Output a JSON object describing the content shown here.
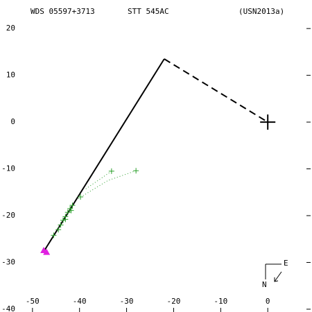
{
  "chart_data": {
    "type": "scatter",
    "titles": [
      "WDS 05597+3713",
      "STT 545AC",
      "(USN2013a)"
    ],
    "xlim": [
      -56.9,
      9.4
    ],
    "ylim": [
      -40.6,
      26.1
    ],
    "xticks": [
      -50,
      -40,
      -30,
      -20,
      -10,
      0
    ],
    "yticks": [
      20,
      10,
      0,
      -10,
      -20,
      -30,
      -40
    ],
    "grid": false,
    "compass": [
      "N",
      "E"
    ],
    "series": [
      {
        "x": [
          -47.5,
          -22.0
        ],
        "y": [
          -27.5,
          13.5
        ],
        "color": "#000000",
        "line": "solid",
        "marker": "none"
      },
      {
        "x": [
          -22.0,
          0
        ],
        "y": [
          13.5,
          0
        ],
        "color": "#000000",
        "line": "dashed",
        "marker": "none"
      },
      {
        "x": [
          -33.2,
          -39.0
        ],
        "y": [
          -10.5,
          -14.5
        ],
        "color": "#2ca02c",
        "line": "dotted",
        "marker": "none"
      },
      {
        "x": [
          -28.0,
          -34.0,
          -40.5
        ],
        "y": [
          -10.4,
          -12.5,
          -16.5
        ],
        "color": "#2ca02c",
        "line": "dotted",
        "marker": "none"
      },
      {
        "x": [
          -33.2,
          -28.0,
          -39.8,
          -41.5,
          -42.0,
          -42.5,
          -43.0,
          -43.5,
          -44.0,
          -44.5,
          -45.5,
          -41.8,
          -43.0
        ],
        "y": [
          -10.5,
          -10.4,
          -16.0,
          -17.8,
          -18.5,
          -19.3,
          -20.2,
          -21.0,
          -22.0,
          -23.0,
          -24.2,
          -18.9,
          -20.8
        ],
        "color": "#2ca02c",
        "line": "none",
        "marker": "plus"
      },
      {
        "x": [
          -47.6,
          -47.0
        ],
        "y": [
          -27.4,
          -27.8
        ],
        "color": "#e020e0",
        "line": "none",
        "marker": "triangle"
      },
      {
        "x": [
          0
        ],
        "y": [
          0
        ],
        "color": "#000000",
        "line": "none",
        "marker": "bigcross"
      }
    ]
  }
}
